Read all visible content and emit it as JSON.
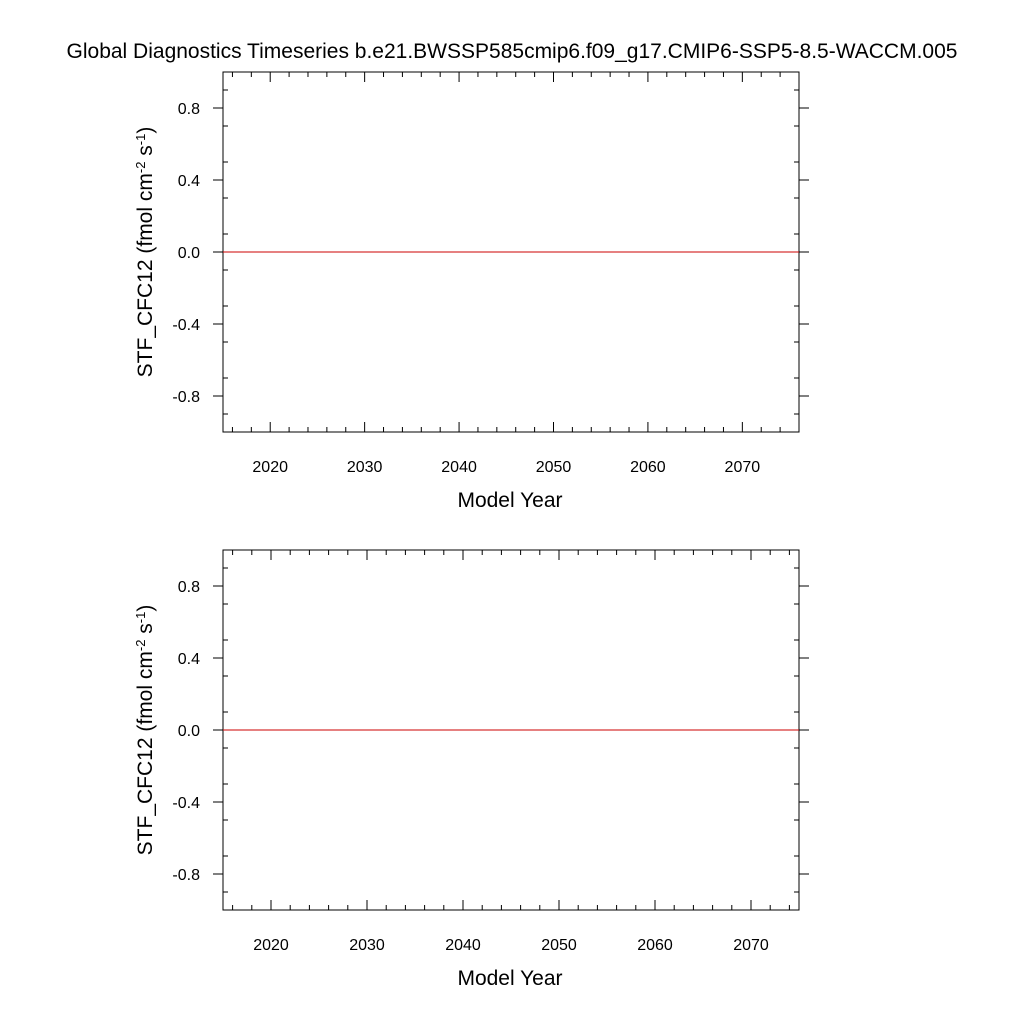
{
  "figure": {
    "title": "Global Diagnostics Timeseries b.e21.BWSSP585cmip6.f09_g17.CMIP6-SSP5-8.5-WACCM.005"
  },
  "colors": {
    "series_line": "#cc0000",
    "axes": "#000000",
    "background": "#ffffff"
  },
  "chart_data": [
    {
      "type": "line",
      "xlabel": "Model Year",
      "ylabel": {
        "prefix": "STF_CFC12 (fmol cm",
        "exp1": "-2",
        "mid": " s",
        "exp2": "-1",
        "suffix": ")"
      },
      "xlim": [
        2015,
        2076
      ],
      "ylim": [
        -1.0,
        1.0
      ],
      "xticks": [
        2020,
        2030,
        2040,
        2050,
        2060,
        2070
      ],
      "xtick_labels": [
        "2020",
        "2030",
        "2040",
        "2050",
        "2060",
        "2070"
      ],
      "yticks": [
        -0.8,
        -0.4,
        0.0,
        0.4,
        0.8
      ],
      "ytick_labels": [
        "-0.8",
        "-0.4",
        "0.0",
        "0.4",
        "0.8"
      ],
      "reference_line": 0.0,
      "grid": false,
      "legend": "none",
      "series": [
        {
          "x": [
            2015,
            2076
          ],
          "y": [
            0.0,
            0.0
          ]
        }
      ]
    },
    {
      "type": "line",
      "xlabel": "Model Year",
      "ylabel": {
        "prefix": "STF_CFC12 (fmol cm",
        "exp1": "-2",
        "mid": " s",
        "exp2": "-1",
        "suffix": ")"
      },
      "xlim": [
        2015,
        2075
      ],
      "ylim": [
        -1.0,
        1.0
      ],
      "xticks": [
        2020,
        2030,
        2040,
        2050,
        2060,
        2070
      ],
      "xtick_labels": [
        "2020",
        "2030",
        "2040",
        "2050",
        "2060",
        "2070"
      ],
      "yticks": [
        -0.8,
        -0.4,
        0.0,
        0.4,
        0.8
      ],
      "ytick_labels": [
        "-0.8",
        "-0.4",
        "0.0",
        "0.4",
        "0.8"
      ],
      "reference_line": 0.0,
      "grid": false,
      "legend": "none",
      "series": [
        {
          "x": [
            2015,
            2075
          ],
          "y": [
            0.0,
            0.0
          ]
        }
      ]
    }
  ]
}
